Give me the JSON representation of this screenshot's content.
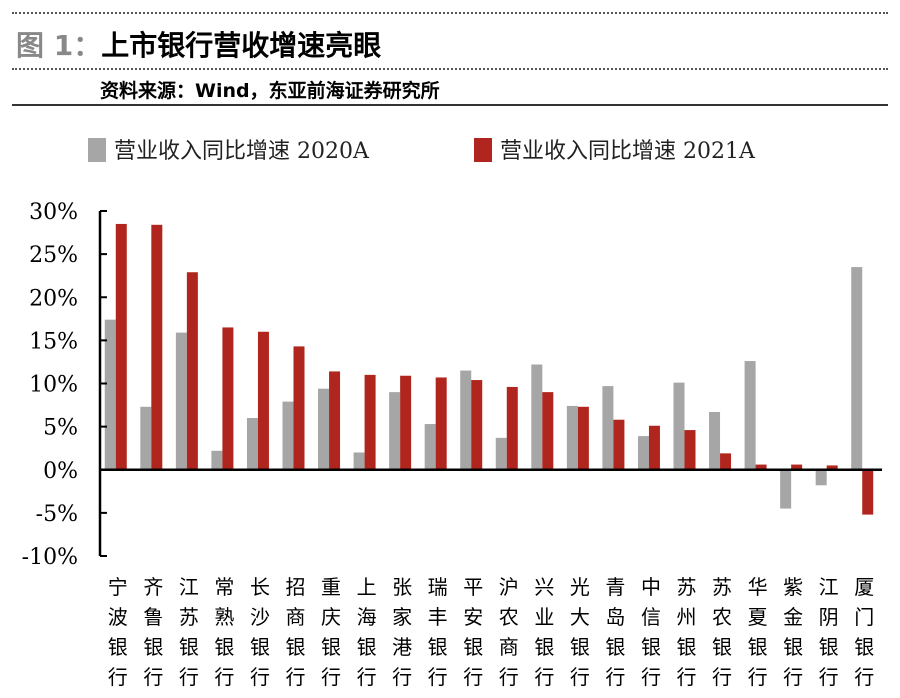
{
  "header": {
    "figure_label": "图 1：",
    "title": "上市银行营收增速亮眼",
    "source": "资料来源：Wind，东亚前海证券研究所"
  },
  "colors": {
    "series_2020": "#a6a6a6",
    "series_2021": "#b0261e"
  },
  "chart_data": {
    "type": "bar",
    "categories": [
      "宁波银行",
      "齐鲁银行",
      "江苏银行",
      "常熟银行",
      "长沙银行",
      "招商银行",
      "重庆银行",
      "上海银行",
      "张家港行",
      "瑞丰银行",
      "平安银行",
      "沪农商行",
      "兴业银行",
      "光大银行",
      "青岛银行",
      "中信银行",
      "苏州银行",
      "苏农银行",
      "华夏银行",
      "紫金银行",
      "江阴银行",
      "厦门银行"
    ],
    "series": [
      {
        "name": "营业收入同比增速 2020A",
        "values": [
          17.4,
          7.3,
          15.9,
          2.2,
          6.0,
          7.9,
          9.4,
          2.0,
          9.0,
          5.3,
          11.5,
          3.7,
          12.2,
          7.4,
          9.7,
          3.9,
          10.1,
          6.7,
          12.6,
          -4.5,
          -1.8,
          23.5
        ]
      },
      {
        "name": "营业收入同比增速 2021A",
        "values": [
          28.5,
          28.4,
          22.9,
          16.5,
          16.0,
          14.3,
          11.4,
          11.0,
          10.9,
          10.7,
          10.4,
          9.6,
          9.0,
          7.3,
          5.8,
          5.1,
          4.6,
          1.9,
          0.6,
          0.6,
          0.5,
          -5.2
        ]
      }
    ],
    "yticks": [
      "30%",
      "25%",
      "20%",
      "15%",
      "10%",
      "5%",
      "0%",
      "-5%",
      "-10%"
    ],
    "ylim": [
      -10,
      30
    ],
    "legend": "top"
  }
}
